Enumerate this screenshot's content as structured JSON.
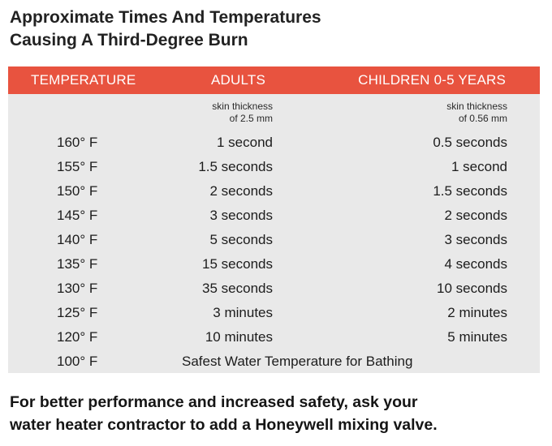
{
  "title": {
    "line1": "Approximate Times And Temperatures",
    "line2": "Causing A Third-Degree Burn"
  },
  "table": {
    "headers": {
      "temperature": "TEMPERATURE",
      "adults": "ADULTS",
      "children": "CHILDREN 0-5 YEARS"
    },
    "subheaders": {
      "adults_line1": "skin thickness",
      "adults_line2": "of 2.5 mm",
      "children_line1": "skin thickness",
      "children_line2": "of 0.56 mm"
    },
    "rows": [
      {
        "temp": "160° F",
        "adults": "1 second",
        "children": "0.5 seconds"
      },
      {
        "temp": "155° F",
        "adults": "1.5 seconds",
        "children": "1 second"
      },
      {
        "temp": "150° F",
        "adults": "2 seconds",
        "children": "1.5 seconds"
      },
      {
        "temp": "145° F",
        "adults": "3 seconds",
        "children": "2 seconds"
      },
      {
        "temp": "140° F",
        "adults": "5 seconds",
        "children": "3 seconds"
      },
      {
        "temp": "135° F",
        "adults": "15 seconds",
        "children": "4 seconds"
      },
      {
        "temp": "130° F",
        "adults": "35 seconds",
        "children": "10 seconds"
      },
      {
        "temp": "125° F",
        "adults": "3 minutes",
        "children": "2 minutes"
      },
      {
        "temp": "120° F",
        "adults": "10 minutes",
        "children": "5 minutes"
      }
    ],
    "safe_row": {
      "temp": "100° F",
      "note": "Safest Water Temperature for Bathing"
    }
  },
  "footer": {
    "line1": "For better performance and increased safety, ask your",
    "line2": "water heater contractor to add a Honeywell mixing valve."
  },
  "colors": {
    "header_bg": "#e8533f",
    "panel_bg": "#e9e9e9"
  }
}
